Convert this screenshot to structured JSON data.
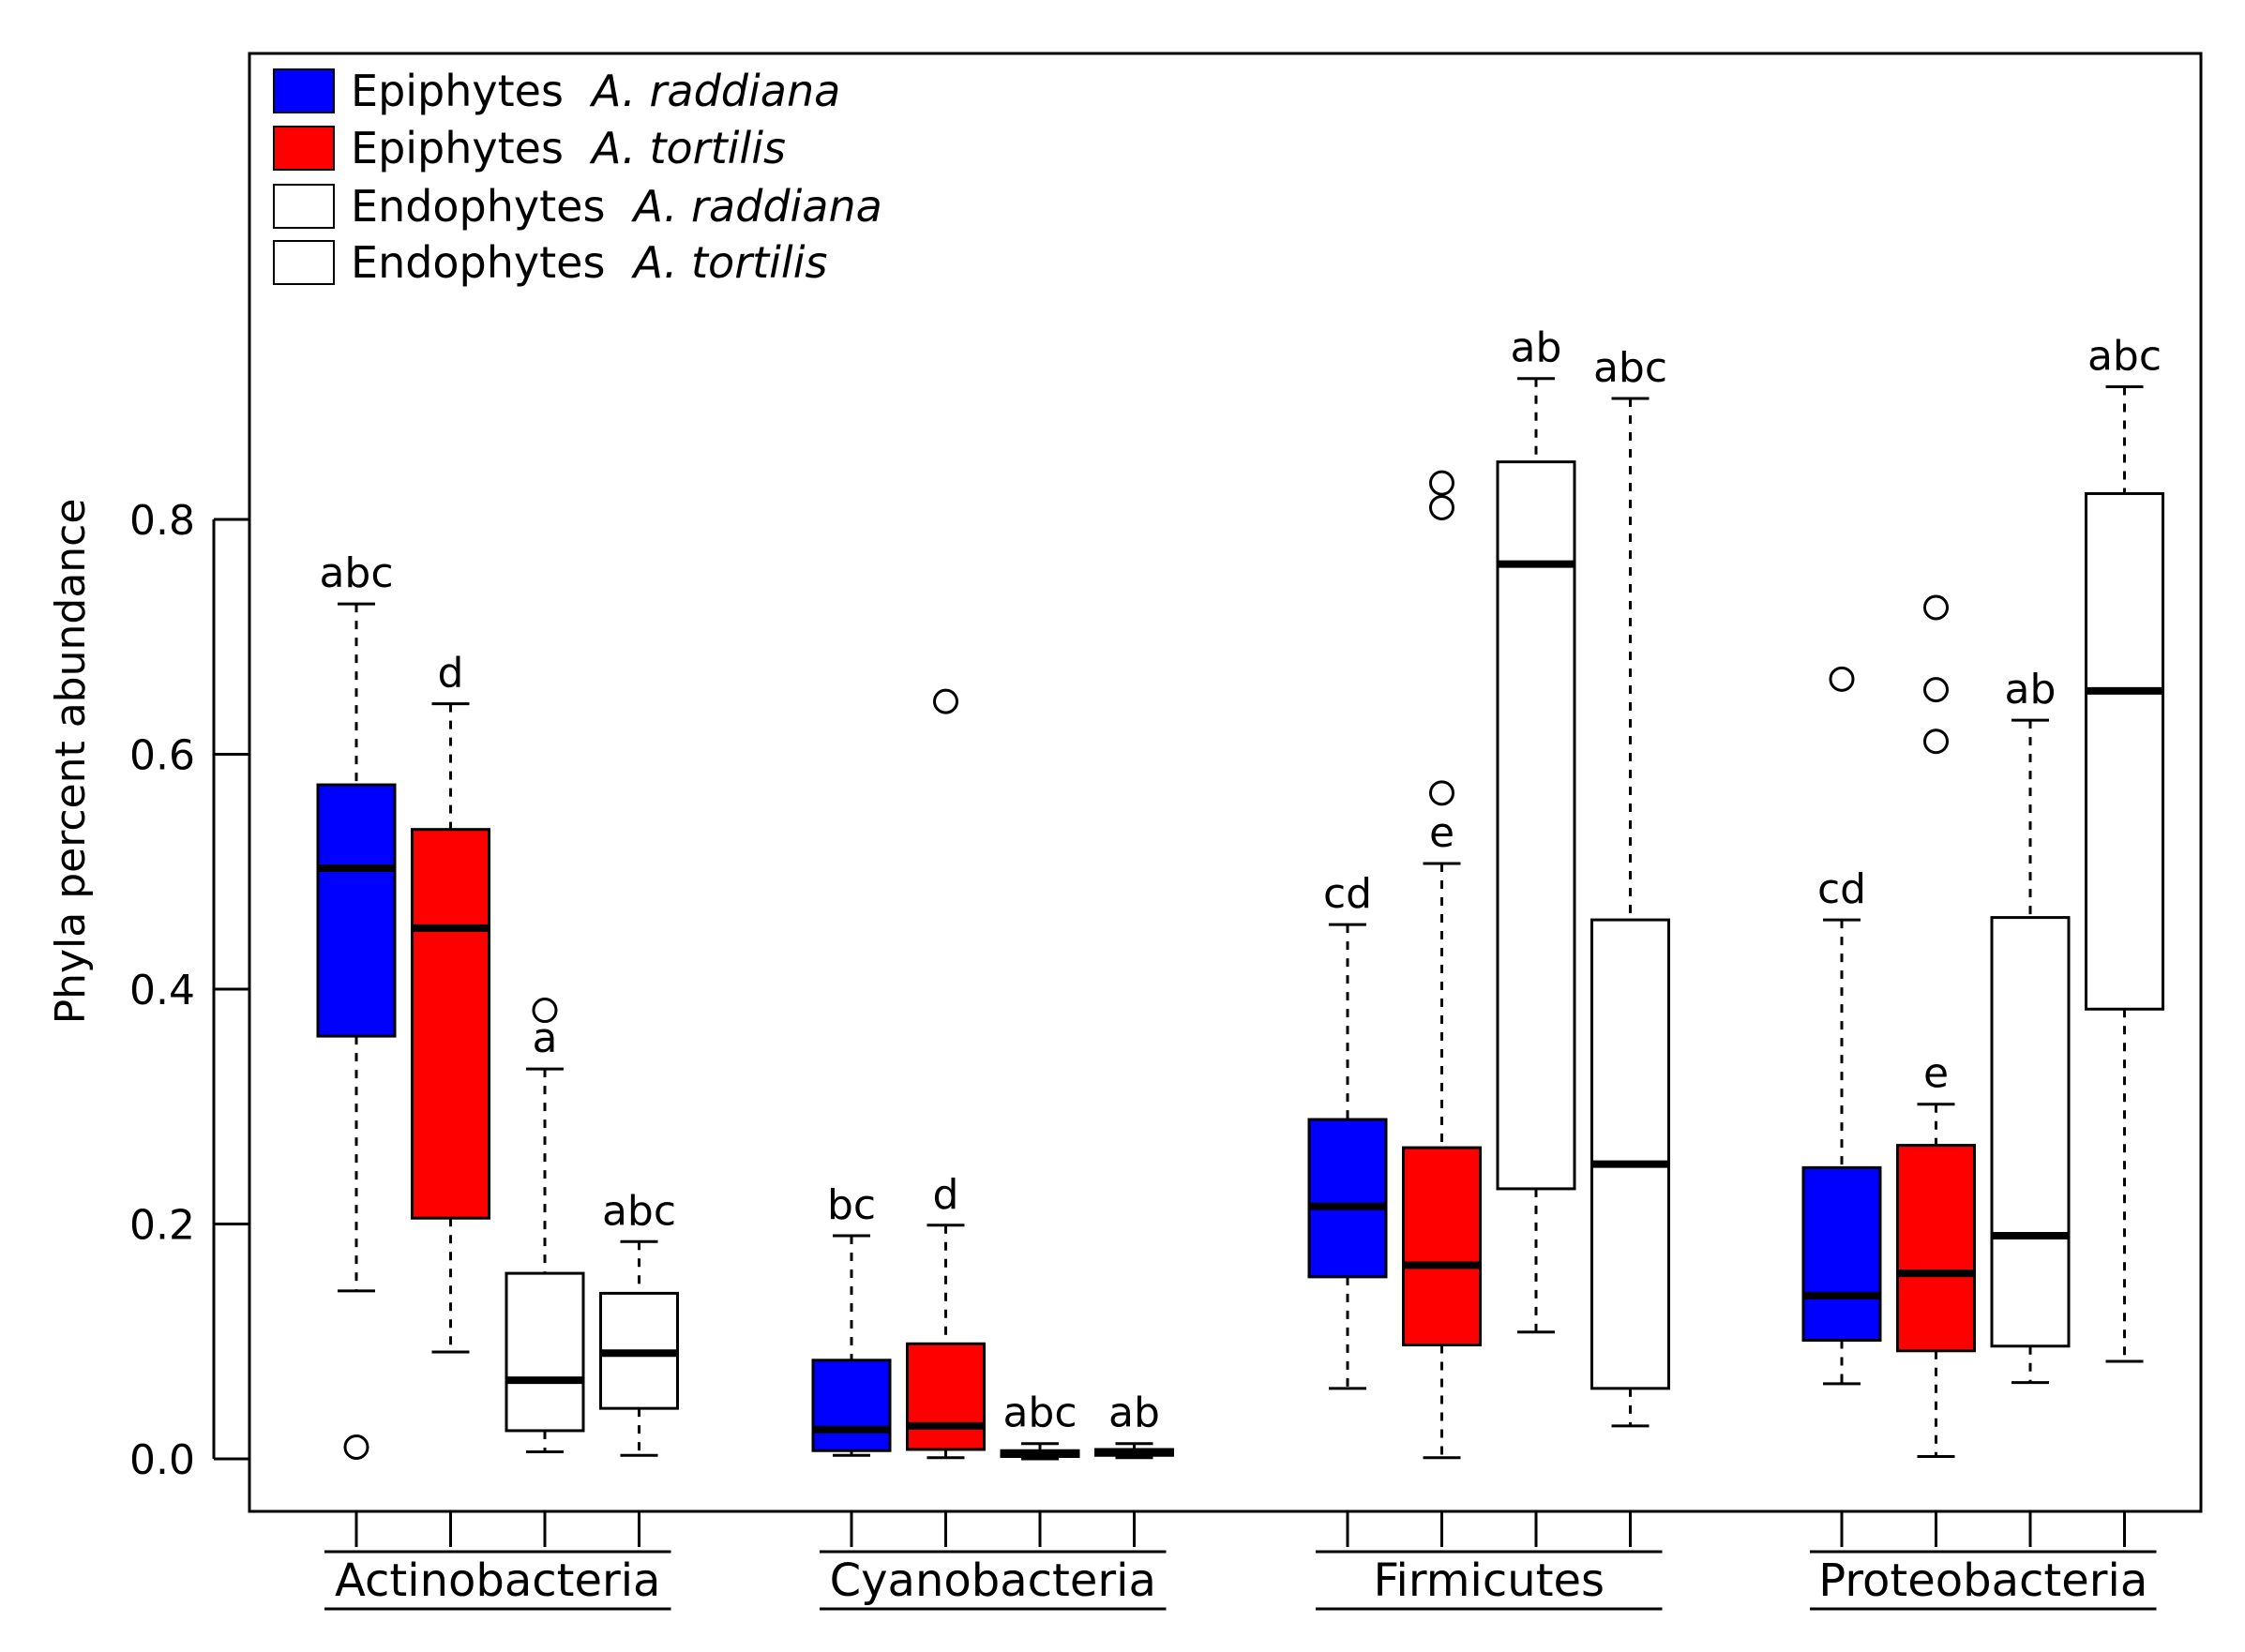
{
  "chart_data": {
    "type": "boxplot",
    "title": "",
    "xlabel": "",
    "ylabel": "Phyla percent abundance",
    "ylim": [
      -0.035,
      0.96
    ],
    "yticks": [
      0.0,
      0.2,
      0.4,
      0.6,
      0.8
    ],
    "ytick_labels": [
      "0.0",
      "0.2",
      "0.4",
      "0.6",
      "0.8"
    ],
    "legend": {
      "position": "top-left",
      "entries": [
        {
          "name": "Epiphytes",
          "species": "A. raddiana",
          "color": "#0000ff"
        },
        {
          "name": "Epiphytes",
          "species": "A. tortilis",
          "color": "#ff0000"
        },
        {
          "name": "Endophytes",
          "species": "A. raddiana",
          "color": "#ffffff"
        },
        {
          "name": "Endophytes",
          "species": "A. tortilis",
          "color": "#ffffff"
        }
      ]
    },
    "groups": [
      {
        "name": "Actinobacteria",
        "boxes": [
          {
            "series": "Epiphytes A. raddiana",
            "color": "#0000ff",
            "whisker_low": 0.143,
            "q1": 0.36,
            "median": 0.503,
            "q3": 0.574,
            "whisker_high": 0.728,
            "outliers": [
              0.01
            ],
            "label": "abc"
          },
          {
            "series": "Epiphytes A. tortilis",
            "color": "#ff0000",
            "whisker_low": 0.091,
            "q1": 0.205,
            "median": 0.452,
            "q3": 0.536,
            "whisker_high": 0.643,
            "outliers": [],
            "label": "d"
          },
          {
            "series": "Endophytes A. raddiana",
            "color": "#ffffff",
            "whisker_low": 0.006,
            "q1": 0.024,
            "median": 0.067,
            "q3": 0.158,
            "whisker_high": 0.332,
            "outliers": [
              0.382
            ],
            "label": "a"
          },
          {
            "series": "Endophytes A. tortilis",
            "color": "#ffffff",
            "whisker_low": 0.003,
            "q1": 0.043,
            "median": 0.09,
            "q3": 0.141,
            "whisker_high": 0.185,
            "outliers": [],
            "label": "abc"
          }
        ]
      },
      {
        "name": "Cyanobacteria",
        "boxes": [
          {
            "series": "Epiphytes A. raddiana",
            "color": "#0000ff",
            "whisker_low": 0.003,
            "q1": 0.007,
            "median": 0.025,
            "q3": 0.084,
            "whisker_high": 0.19,
            "outliers": [],
            "label": "bc"
          },
          {
            "series": "Epiphytes A. tortilis",
            "color": "#ff0000",
            "whisker_low": 0.001,
            "q1": 0.008,
            "median": 0.028,
            "q3": 0.098,
            "whisker_high": 0.199,
            "outliers": [
              0.645
            ],
            "label": "d"
          },
          {
            "series": "Endophytes A. raddiana",
            "color": "#ffffff",
            "whisker_low": 0.0,
            "q1": 0.002,
            "median": 0.004,
            "q3": 0.007,
            "whisker_high": 0.013,
            "outliers": [],
            "label": "abc"
          },
          {
            "series": "Endophytes A. tortilis",
            "color": "#ffffff",
            "whisker_low": 0.001,
            "q1": 0.003,
            "median": 0.006,
            "q3": 0.008,
            "whisker_high": 0.013,
            "outliers": [],
            "label": "ab"
          }
        ]
      },
      {
        "name": "Firmicutes",
        "boxes": [
          {
            "series": "Epiphytes A. raddiana",
            "color": "#0000ff",
            "whisker_low": 0.06,
            "q1": 0.155,
            "median": 0.215,
            "q3": 0.289,
            "whisker_high": 0.455,
            "outliers": [],
            "label": "cd"
          },
          {
            "series": "Epiphytes A. tortilis",
            "color": "#ff0000",
            "whisker_low": 0.001,
            "q1": 0.097,
            "median": 0.165,
            "q3": 0.265,
            "whisker_high": 0.507,
            "outliers": [
              0.567,
              0.81,
              0.831
            ],
            "label": "e"
          },
          {
            "series": "Endophytes A. raddiana",
            "color": "#ffffff",
            "whisker_low": 0.108,
            "q1": 0.23,
            "median": 0.762,
            "q3": 0.849,
            "whisker_high": 0.92,
            "outliers": [],
            "label": "ab"
          },
          {
            "series": "Endophytes A. tortilis",
            "color": "#ffffff",
            "whisker_low": 0.028,
            "q1": 0.06,
            "median": 0.251,
            "q3": 0.459,
            "whisker_high": 0.903,
            "outliers": [],
            "label": "abc"
          }
        ]
      },
      {
        "name": "Proteobacteria",
        "boxes": [
          {
            "series": "Epiphytes A. raddiana",
            "color": "#0000ff",
            "whisker_low": 0.064,
            "q1": 0.101,
            "median": 0.139,
            "q3": 0.248,
            "whisker_high": 0.459,
            "outliers": [
              0.664
            ],
            "label": "cd"
          },
          {
            "series": "Epiphytes A. tortilis",
            "color": "#ff0000",
            "whisker_low": 0.002,
            "q1": 0.092,
            "median": 0.158,
            "q3": 0.267,
            "whisker_high": 0.302,
            "outliers": [
              0.611,
              0.655,
              0.725
            ],
            "label": "e"
          },
          {
            "series": "Endophytes A. raddiana",
            "color": "#ffffff",
            "whisker_low": 0.065,
            "q1": 0.096,
            "median": 0.19,
            "q3": 0.461,
            "whisker_high": 0.629,
            "outliers": [],
            "label": "ab"
          },
          {
            "series": "Endophytes A. tortilis",
            "color": "#ffffff",
            "whisker_low": 0.083,
            "q1": 0.383,
            "median": 0.654,
            "q3": 0.822,
            "whisker_high": 0.913,
            "outliers": [],
            "label": "abc"
          }
        ]
      }
    ]
  }
}
